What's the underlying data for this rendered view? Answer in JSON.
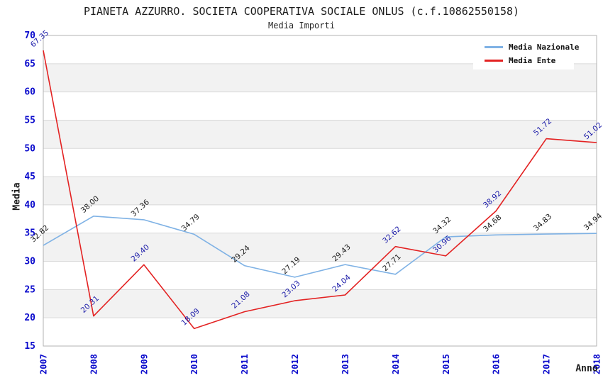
{
  "title": "PIANETA AZZURRO. SOCIETA COOPERATIVA SOCIALE ONLUS (c.f.10862550158)",
  "subtitle": "Media Importi",
  "chart_data": {
    "type": "line",
    "title": "PIANETA AZZURRO. SOCIETA COOPERATIVA SOCIALE ONLUS (c.f.10862550158)",
    "subtitle": "Media Importi",
    "xlabel": "Anno",
    "ylabel": "Media",
    "categories": [
      "2007",
      "2008",
      "2009",
      "2010",
      "2011",
      "2012",
      "2013",
      "2014",
      "2015",
      "2016",
      "2017",
      "2018"
    ],
    "ylim": [
      15,
      70
    ],
    "ytick_step": 5,
    "yticks": [
      "15",
      "20",
      "25",
      "30",
      "35",
      "40",
      "45",
      "50",
      "55",
      "60",
      "65",
      "70"
    ],
    "grid": "horizontal-with-alternating-bands",
    "legend_position": "top-right",
    "series": [
      {
        "name": "Media Nazionale",
        "color": "#7FB2E5",
        "label_color": "#1c1c1c",
        "values": [
          32.82,
          38.0,
          37.36,
          34.79,
          29.24,
          27.19,
          29.43,
          27.71,
          34.32,
          34.68,
          34.83,
          34.94
        ],
        "labels": [
          "32.82",
          "38.00",
          "37.36",
          "34.79",
          "29.24",
          "27.19",
          "29.43",
          "27.71",
          "34.32",
          "34.68",
          "34.83",
          "34.94"
        ]
      },
      {
        "name": "Media Ente",
        "color": "#E32222",
        "label_color": "#1A1AA8",
        "values": [
          67.35,
          20.31,
          29.4,
          18.09,
          21.08,
          23.03,
          24.04,
          32.62,
          30.96,
          38.92,
          51.72,
          51.02
        ],
        "labels": [
          "67.35",
          "20.31",
          "29.40",
          "18.09",
          "21.08",
          "23.03",
          "24.04",
          "32.62",
          "30.96",
          "38.92",
          "51.72",
          "51.02"
        ]
      }
    ],
    "colors": {
      "band": "#f2f2f2",
      "gridline": "#d9d9d9",
      "plot_border": "#b3b3b3",
      "tick_label": "#0a0acc"
    }
  }
}
